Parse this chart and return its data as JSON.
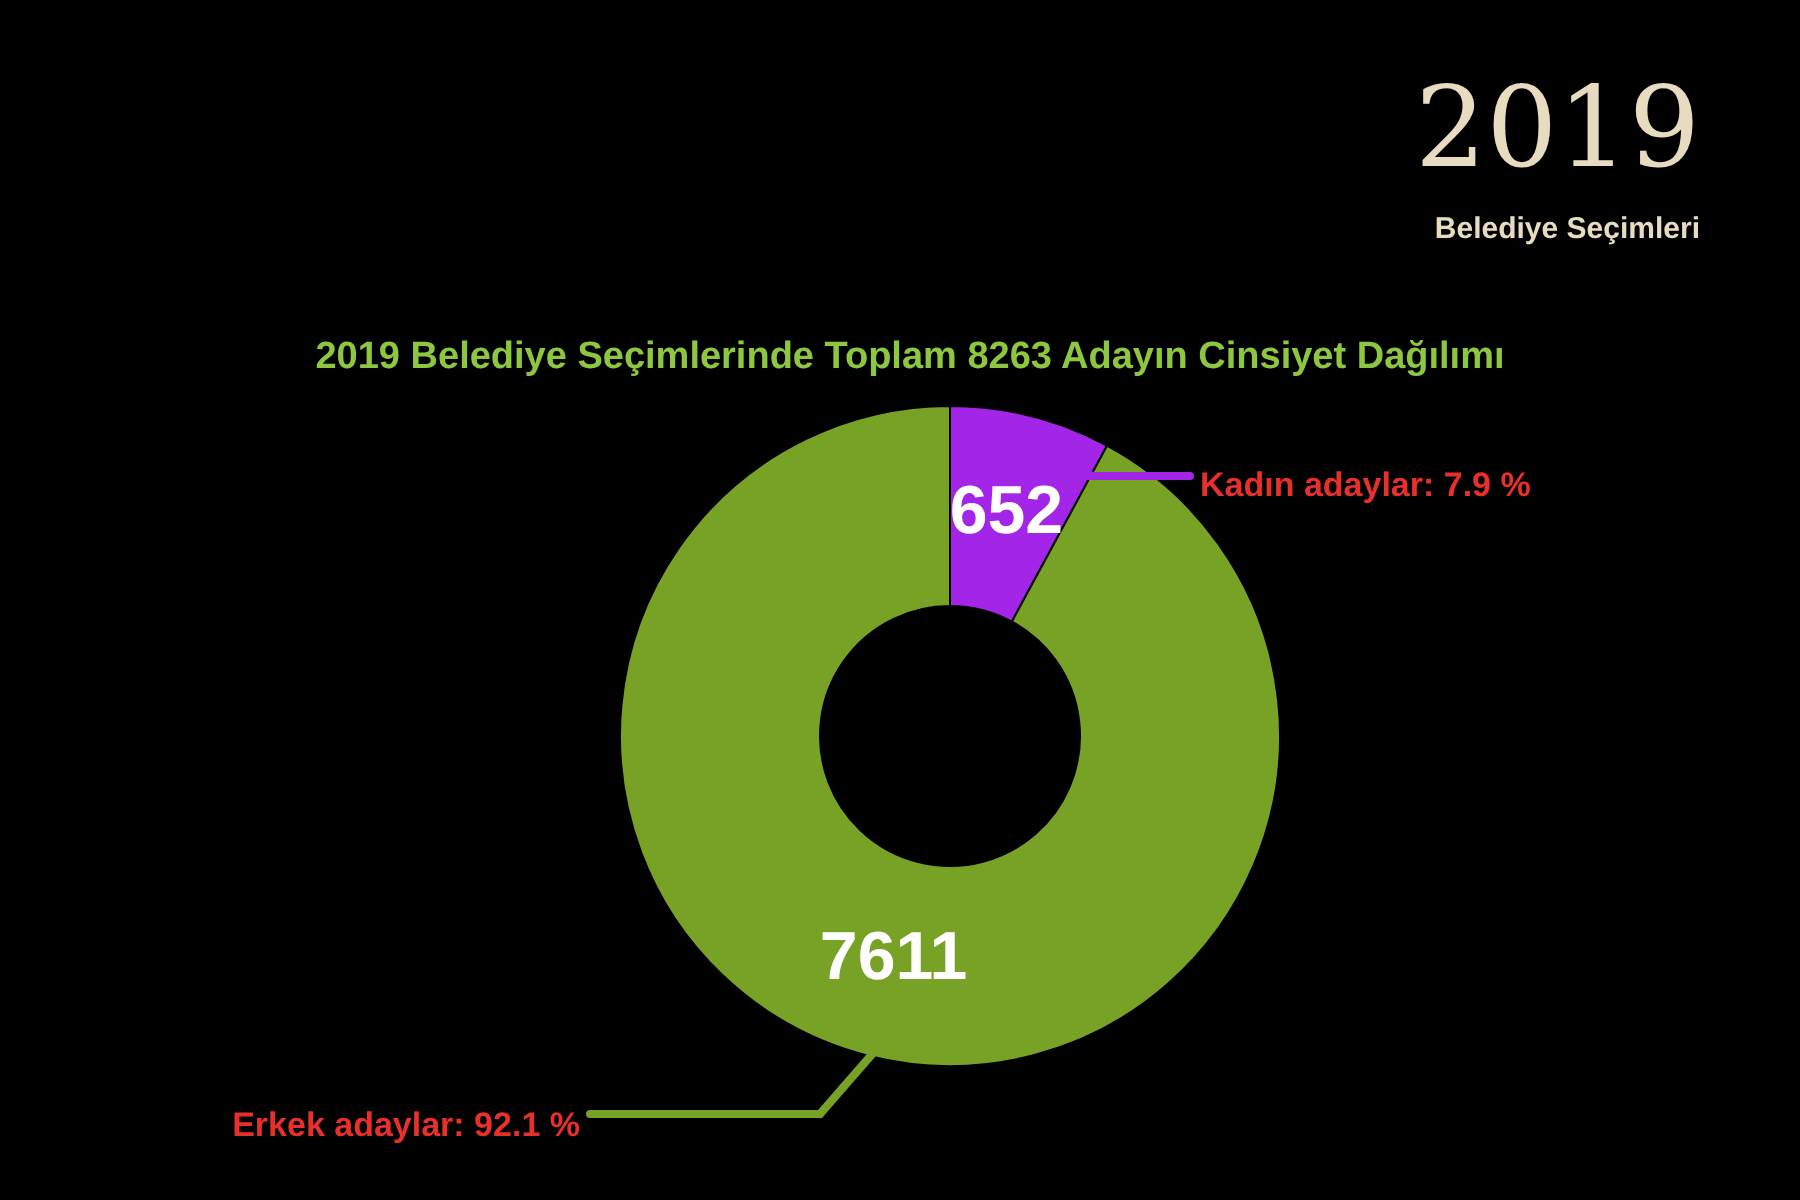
{
  "chart_data": {
    "type": "donut",
    "title": "2019 Belediye Seçimlerinde Toplam 8263 Adayın Cinsiyet Dağılımı",
    "categories": [
      "Kadın adaylar: 7.9 %",
      "Erkek adaylar: 92.1 %"
    ],
    "values": [
      652,
      7611
    ],
    "colors": [
      "#a326e8",
      "#78a226"
    ],
    "data_labels": true,
    "annotations": [
      "2019",
      "Belediye Seçimleri"
    ]
  }
}
